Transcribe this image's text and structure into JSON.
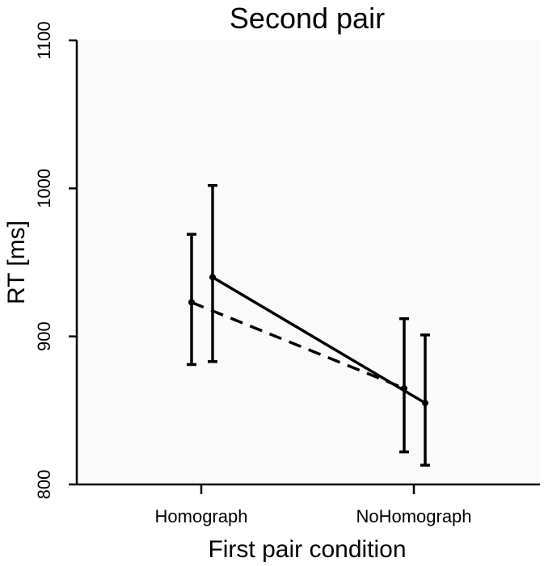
{
  "chart_data": {
    "type": "line",
    "title": "Second pair",
    "xlabel": "First pair condition",
    "ylabel": "RT [ms]",
    "categories": [
      "Homograph",
      "NoHomograph"
    ],
    "ylim": [
      800,
      1100
    ],
    "yticks": [
      800,
      900,
      1000,
      1100
    ],
    "grid": false,
    "legend": "none",
    "series": [
      {
        "style": "dashed",
        "values": [
          923,
          865
        ],
        "error_low": [
          881,
          822
        ],
        "error_high": [
          969,
          912
        ]
      },
      {
        "style": "solid",
        "values": [
          940,
          855
        ],
        "error_low": [
          883,
          813
        ],
        "error_high": [
          1002,
          901
        ]
      }
    ],
    "colors": {
      "background": "#fafafa",
      "ink": "#000000"
    }
  }
}
